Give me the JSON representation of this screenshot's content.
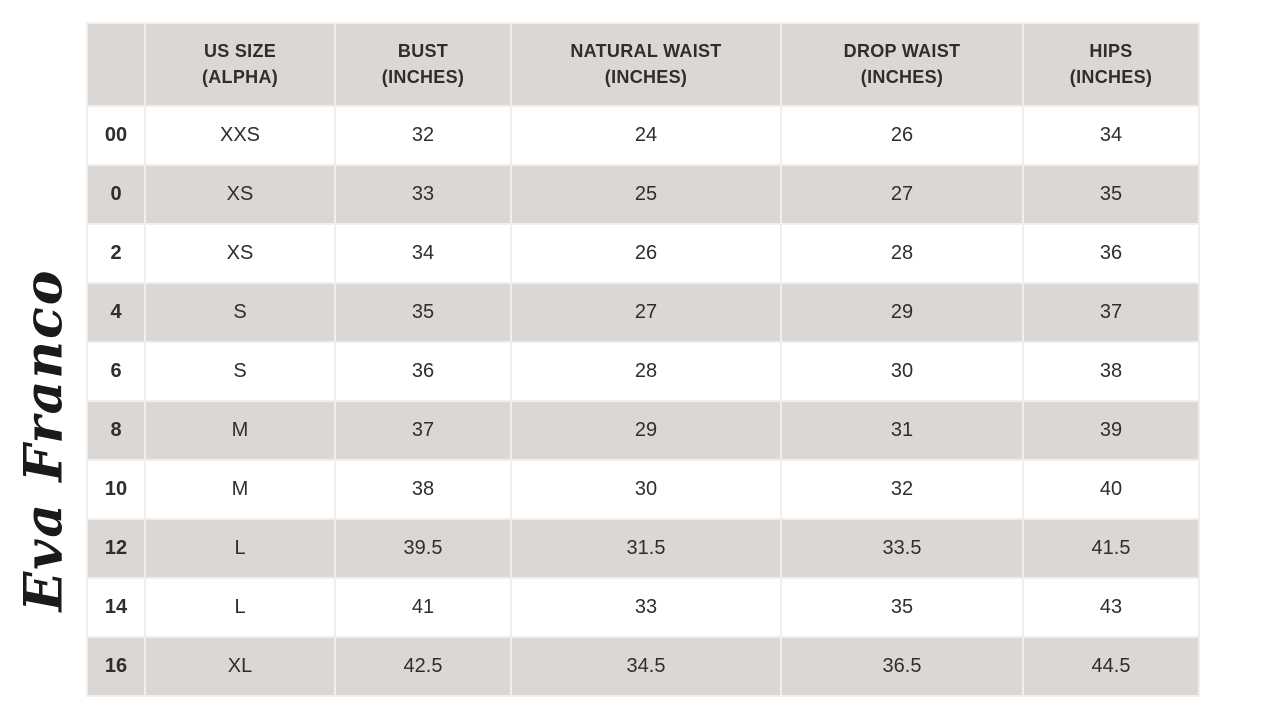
{
  "brand": {
    "logo_text": "Eva Franco"
  },
  "colors": {
    "background": "#ffffff",
    "row_stripe": "#dbd7d5",
    "header_bg": "#dbd7d5",
    "grid_line": "#f1efee",
    "text": "#302e2d",
    "logo": "#1c1a19"
  },
  "chart_data": {
    "type": "table",
    "brand": "Eva Franco",
    "columns": [
      "",
      "US SIZE\n(ALPHA)",
      "BUST\n(INCHES)",
      "NATURAL WAIST\n(INCHES)",
      "DROP WAIST\n(INCHES)",
      "HIPS\n(INCHES)"
    ],
    "rows": [
      [
        "00",
        "XXS",
        "32",
        "24",
        "26",
        "34"
      ],
      [
        "0",
        "XS",
        "33",
        "25",
        "27",
        "35"
      ],
      [
        "2",
        "XS",
        "34",
        "26",
        "28",
        "36"
      ],
      [
        "4",
        "S",
        "35",
        "27",
        "29",
        "37"
      ],
      [
        "6",
        "S",
        "36",
        "28",
        "30",
        "38"
      ],
      [
        "8",
        "M",
        "37",
        "29",
        "31",
        "39"
      ],
      [
        "10",
        "M",
        "38",
        "30",
        "32",
        "40"
      ],
      [
        "12",
        "L",
        "39.5",
        "31.5",
        "33.5",
        "41.5"
      ],
      [
        "14",
        "L",
        "41",
        "33",
        "35",
        "43"
      ],
      [
        "16",
        "XL",
        "42.5",
        "34.5",
        "36.5",
        "44.5"
      ]
    ],
    "layout_hints": {
      "striped_rows": "even data rows white, odd data rows gray, header gray",
      "legend_position": "none",
      "grid": "on"
    }
  }
}
